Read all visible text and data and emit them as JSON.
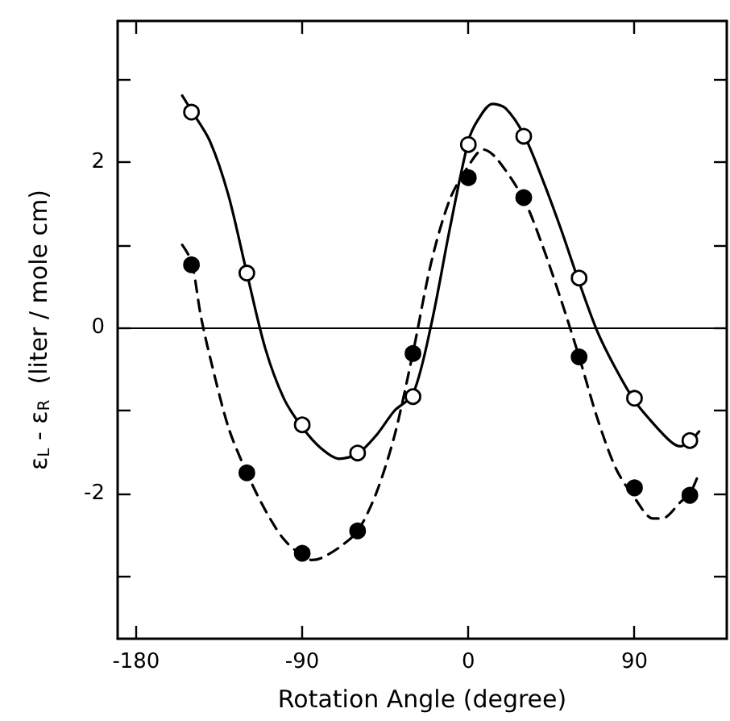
{
  "chart_data": {
    "type": "scatter",
    "xlabel": "Rotation Angle (degree)",
    "ylabel": "ε$_{L}$ - ε$_{R}$  (liter / mole cm)",
    "xlim": [
      -190,
      140
    ],
    "ylim": [
      -3.75,
      3.7
    ],
    "xticks": [
      -180,
      -90,
      0,
      90
    ],
    "yticks": [
      {
        "value": -3,
        "label": null
      },
      -2,
      {
        "value": -1,
        "label": null
      },
      0,
      {
        "value": 1,
        "label": null
      },
      2,
      {
        "value": 3,
        "label": null
      }
    ],
    "grid": false,
    "ref_lines": [
      {
        "axis": "y",
        "value": 0,
        "color": "#000000"
      }
    ],
    "series": [
      {
        "type": "line",
        "color": "#000000",
        "marker": "none",
        "line_style": "solid",
        "x": [
          -155,
          -150,
          -140,
          -130,
          -120,
          -110,
          -100,
          -90,
          -80,
          -70,
          -60,
          -50,
          -40,
          -30,
          -20,
          -10,
          0,
          5,
          13,
          20,
          30,
          40,
          50,
          60,
          70,
          80,
          90,
          100,
          110,
          115,
          120,
          125
        ],
        "values": [
          2.8,
          2.62,
          2.25,
          1.6,
          0.66,
          -0.25,
          -0.85,
          -1.2,
          -1.45,
          -1.58,
          -1.52,
          -1.3,
          -1.0,
          -0.8,
          0.05,
          1.2,
          2.25,
          2.5,
          2.7,
          2.65,
          2.33,
          1.8,
          1.2,
          0.55,
          -0.05,
          -0.5,
          -0.88,
          -1.15,
          -1.38,
          -1.43,
          -1.37,
          -1.25
        ]
      },
      {
        "type": "line",
        "color": "#000000",
        "marker": "none",
        "line_style": "dashed",
        "x": [
          -155,
          -150,
          -145,
          -140,
          -130,
          -120,
          -110,
          -100,
          -90,
          -85,
          -80,
          -70,
          -60,
          -50,
          -40,
          -30,
          -20,
          -10,
          0,
          8,
          15,
          30,
          40,
          50,
          60,
          70,
          80,
          90,
          100,
          105,
          115,
          120,
          125
        ],
        "values": [
          1.0,
          0.8,
          0.15,
          -0.35,
          -1.2,
          -1.75,
          -2.2,
          -2.55,
          -2.75,
          -2.8,
          -2.78,
          -2.65,
          -2.45,
          -2.0,
          -1.3,
          -0.3,
          0.8,
          1.55,
          1.95,
          2.15,
          2.05,
          1.55,
          1.0,
          0.35,
          -0.35,
          -1.1,
          -1.7,
          -2.05,
          -2.3,
          -2.3,
          -2.1,
          -2.0,
          -1.75
        ]
      },
      {
        "color": "#ffffff",
        "marker": "circle",
        "x": [
          -150,
          -120,
          -90,
          -60,
          -30,
          0,
          30,
          60,
          90,
          120
        ],
        "values": [
          2.6,
          0.66,
          -1.17,
          -1.51,
          -0.83,
          2.21,
          2.31,
          0.6,
          -0.85,
          -1.36
        ]
      },
      {
        "color": "#000000",
        "marker": "circle",
        "x": [
          -150,
          -120,
          -90,
          -60,
          -30,
          0,
          30,
          60,
          90,
          120
        ],
        "values": [
          0.76,
          -1.75,
          -2.72,
          -2.45,
          -0.31,
          1.81,
          1.57,
          -0.35,
          -1.93,
          -2.02
        ]
      }
    ]
  }
}
